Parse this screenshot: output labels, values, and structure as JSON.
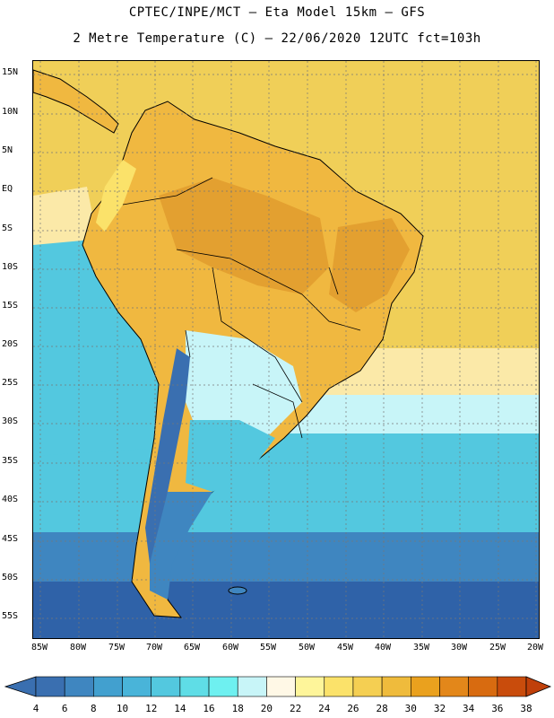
{
  "title_line1": "CPTEC/INPE/MCT –  Eta Model 15km – GFS",
  "title_line2": "2 Metre Temperature (C) – 22/06/2020 12UTC fct=103h",
  "lat_labels": [
    "15N",
    "10N",
    "5N",
    "EQ",
    "5S",
    "10S",
    "15S",
    "20S",
    "25S",
    "30S",
    "35S",
    "40S",
    "45S",
    "50S",
    "55S"
  ],
  "lon_labels": [
    "85W",
    "80W",
    "75W",
    "70W",
    "65W",
    "60W",
    "55W",
    "50W",
    "45W",
    "40W",
    "35W",
    "30W",
    "25W",
    "20W"
  ],
  "colorbar": {
    "values": [
      "4",
      "6",
      "8",
      "10",
      "12",
      "14",
      "16",
      "18",
      "20",
      "22",
      "24",
      "26",
      "28",
      "30",
      "32",
      "34",
      "36",
      "38"
    ],
    "colors": [
      "#3a6fb0",
      "#3f86c0",
      "#42a0cf",
      "#49b4d9",
      "#53c8df",
      "#5fdde6",
      "#6ef0f0",
      "#c8f5f8",
      "#fff8e6",
      "#fef59a",
      "#fbe26a",
      "#f5cf52",
      "#efbb3c",
      "#eaa11e",
      "#e3871a",
      "#d86b10",
      "#c94c0c"
    ],
    "low_cap_color": "#3a6fb0",
    "high_cap_color": "#c0400a"
  },
  "colors": {
    "ocean_tropic": "#f0cf58",
    "ocean_mid": "#fbe9a8",
    "ocean_sub": "#c8f5f8",
    "ocean_cool": "#53c8df",
    "ocean_cold": "#3f86c0",
    "ocean_polar": "#2f62a8",
    "land_hot": "#e3a030",
    "land_warm": "#f0b840",
    "land_mild": "#fbe26a",
    "andes_cold": "#3a6fb0",
    "border": "#000000",
    "grid": "#777777"
  }
}
